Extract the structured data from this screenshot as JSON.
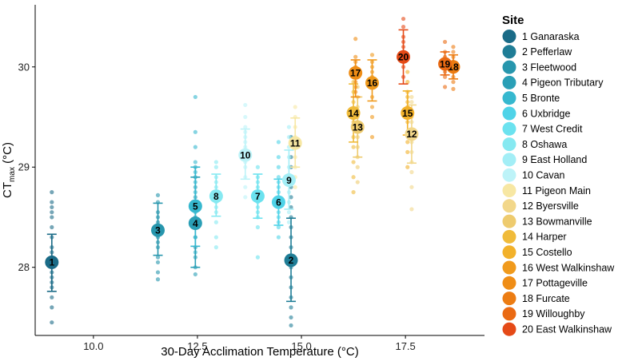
{
  "chart_data": {
    "type": "scatter",
    "xlabel": "30-Day Acclimation Temperature (°C)",
    "ylabel_main": "CT",
    "ylabel_sub": "max",
    "ylabel_unit": " (°C)",
    "xlim": [
      8.6,
      19.4
    ],
    "ylim": [
      27.32,
      30.62
    ],
    "xticks": [
      10.0,
      12.5,
      15.0,
      17.5
    ],
    "xtick_labels": [
      "10.0",
      "12.5",
      "15.0",
      "17.5"
    ],
    "yticks": [
      28,
      29,
      30
    ],
    "ytick_labels": [
      "28",
      "29",
      "30"
    ],
    "grid": false,
    "legend": {
      "title": "Site",
      "placement": "right",
      "entries": [
        "1 Ganaraska",
        "2 Pefferlaw",
        "3 Fleetwood",
        "4 Pigeon Tributary",
        "5 Bronte",
        "6 Uxbridge",
        "7 West Credit",
        "8 Oshawa",
        "9 East Holland",
        "10 Cavan",
        "11 Pigeon Main",
        "12 Byersville",
        "13 Bowmanville",
        "14 Harper",
        "15 Costello",
        "16 West Walkinshaw",
        "17 Pottageville",
        "18 Furcate",
        "19 Willoughby",
        "20 East Walkinshaw"
      ]
    },
    "sites": [
      {
        "id": "1",
        "color": "#1a6b87",
        "x": 9.0,
        "mean": 28.05,
        "lower": 27.76,
        "upper": 28.33,
        "points": [
          27.45,
          27.6,
          27.7,
          27.8,
          27.85,
          27.9,
          27.95,
          28.0,
          28.05,
          28.1,
          28.15,
          28.2,
          28.3,
          28.4,
          28.5,
          28.55,
          28.6,
          28.65,
          28.75
        ]
      },
      {
        "id": "2",
        "color": "#1f7d96",
        "x": 14.75,
        "mean": 28.07,
        "lower": 27.66,
        "upper": 28.49,
        "points": [
          27.42,
          27.5,
          27.6,
          27.7,
          27.8,
          27.9,
          28.0,
          28.1,
          28.2,
          28.3,
          28.4,
          28.5,
          28.6,
          28.7,
          28.8,
          28.9,
          29.0,
          29.1,
          29.3
        ]
      },
      {
        "id": "3",
        "color": "#2796ad",
        "x": 11.55,
        "mean": 28.37,
        "lower": 28.12,
        "upper": 28.64,
        "points": [
          27.88,
          27.95,
          28.05,
          28.1,
          28.2,
          28.25,
          28.3,
          28.35,
          28.4,
          28.45,
          28.5,
          28.55,
          28.65,
          28.72
        ]
      },
      {
        "id": "4",
        "color": "#2a9fb6",
        "x": 12.45,
        "mean": 28.44,
        "lower": 28.0,
        "upper": 28.9,
        "points": [
          27.93,
          28.0,
          28.1,
          28.2,
          28.3,
          28.4,
          28.5,
          28.6,
          28.7,
          28.8,
          28.9,
          29.0
        ]
      },
      {
        "id": "5",
        "color": "#36b8cf",
        "x": 12.45,
        "mean": 28.61,
        "lower": 28.21,
        "upper": 29.0,
        "points": [
          28.15,
          28.3,
          28.45,
          28.55,
          28.65,
          28.75,
          28.85,
          28.95,
          29.05,
          29.2,
          29.35,
          29.7
        ]
      },
      {
        "id": "6",
        "color": "#4fd3e8",
        "x": 14.45,
        "mean": 28.65,
        "lower": 28.42,
        "upper": 28.88,
        "points": [
          28.3,
          28.4,
          28.45,
          28.5,
          28.55,
          28.6,
          28.65,
          28.7,
          28.75,
          28.8,
          28.85,
          28.9,
          29.0,
          29.1,
          29.25
        ]
      },
      {
        "id": "7",
        "color": "#6be2ef",
        "x": 13.95,
        "mean": 28.71,
        "lower": 28.49,
        "upper": 28.93,
        "points": [
          28.1,
          28.4,
          28.5,
          28.55,
          28.6,
          28.65,
          28.7,
          28.75,
          28.8,
          28.85,
          28.9,
          29.0
        ]
      },
      {
        "id": "8",
        "color": "#86e9f1",
        "x": 12.95,
        "mean": 28.71,
        "lower": 28.51,
        "upper": 28.93,
        "points": [
          28.2,
          28.3,
          28.45,
          28.55,
          28.6,
          28.65,
          28.7,
          28.75,
          28.8,
          28.85,
          28.9,
          29.0,
          29.05
        ]
      },
      {
        "id": "9",
        "color": "#a3eef6",
        "x": 14.7,
        "mean": 28.87,
        "lower": 28.58,
        "upper": 29.17,
        "points": [
          28.45,
          28.55,
          28.65,
          28.75,
          28.85,
          28.9,
          29.0,
          29.1,
          29.2,
          29.3,
          29.4
        ]
      },
      {
        "id": "10",
        "color": "#bdf3f8",
        "x": 13.65,
        "mean": 29.12,
        "lower": 28.88,
        "upper": 29.38,
        "points": [
          28.7,
          28.8,
          28.9,
          29.0,
          29.05,
          29.1,
          29.15,
          29.2,
          29.25,
          29.3,
          29.35,
          29.4,
          29.5,
          29.62
        ]
      },
      {
        "id": "11",
        "color": "#f7e7a3",
        "x": 14.85,
        "mean": 29.24,
        "lower": 29.0,
        "upper": 29.49,
        "points": [
          28.8,
          28.9,
          29.0,
          29.1,
          29.2,
          29.25,
          29.3,
          29.4,
          29.5,
          29.6
        ]
      },
      {
        "id": "12",
        "color": "#f2d78a",
        "x": 17.65,
        "mean": 29.33,
        "lower": 29.04,
        "upper": 29.62,
        "points": [
          28.58,
          28.8,
          28.95,
          29.05,
          29.15,
          29.25,
          29.3,
          29.35,
          29.45,
          29.5,
          29.55,
          29.65,
          29.7
        ]
      },
      {
        "id": "13",
        "color": "#eecb6e",
        "x": 16.35,
        "mean": 29.4,
        "lower": 29.1,
        "upper": 29.7,
        "points": [
          28.85,
          29.0,
          29.1,
          29.2,
          29.3,
          29.4,
          29.5,
          29.6,
          29.7,
          29.8
        ]
      },
      {
        "id": "14",
        "color": "#f0bb3a",
        "x": 16.25,
        "mean": 29.54,
        "lower": 29.25,
        "upper": 29.83,
        "points": [
          28.75,
          28.9,
          29.05,
          29.2,
          29.3,
          29.45,
          29.55,
          29.65,
          29.75,
          29.85,
          29.95
        ]
      },
      {
        "id": "15",
        "color": "#f2b12a",
        "x": 17.55,
        "mean": 29.54,
        "lower": 29.32,
        "upper": 29.76,
        "points": [
          29.0,
          29.15,
          29.25,
          29.35,
          29.45,
          29.5,
          29.55,
          29.6,
          29.65,
          29.7,
          29.75,
          29.85,
          29.95
        ]
      },
      {
        "id": "16",
        "color": "#f09a1c",
        "x": 16.7,
        "mean": 29.84,
        "lower": 29.66,
        "upper": 30.07,
        "points": [
          29.3,
          29.5,
          29.6,
          29.7,
          29.8,
          29.85,
          29.9,
          29.95,
          30.0,
          30.05,
          30.12
        ]
      },
      {
        "id": "17",
        "color": "#ef8d16",
        "x": 16.3,
        "mean": 29.94,
        "lower": 29.7,
        "upper": 30.07,
        "points": [
          29.75,
          29.8,
          29.85,
          29.9,
          29.95,
          30.0,
          30.05,
          30.1,
          30.28
        ]
      },
      {
        "id": "18",
        "color": "#ec7c12",
        "x": 18.65,
        "mean": 30.0,
        "lower": 29.88,
        "upper": 30.12,
        "points": [
          29.78,
          29.85,
          29.9,
          29.95,
          30.0,
          30.05,
          30.1,
          30.15,
          30.2
        ]
      },
      {
        "id": "19",
        "color": "#ea6a13",
        "x": 18.45,
        "mean": 30.03,
        "lower": 29.92,
        "upper": 30.15,
        "points": [
          29.8,
          29.9,
          29.95,
          30.0,
          30.05,
          30.1,
          30.15,
          30.25
        ]
      },
      {
        "id": "20",
        "color": "#e54a17",
        "x": 17.45,
        "mean": 30.1,
        "lower": 29.83,
        "upper": 30.37,
        "points": [
          29.9,
          30.0,
          30.05,
          30.1,
          30.15,
          30.2,
          30.25,
          30.3,
          30.4,
          30.48
        ]
      }
    ]
  }
}
